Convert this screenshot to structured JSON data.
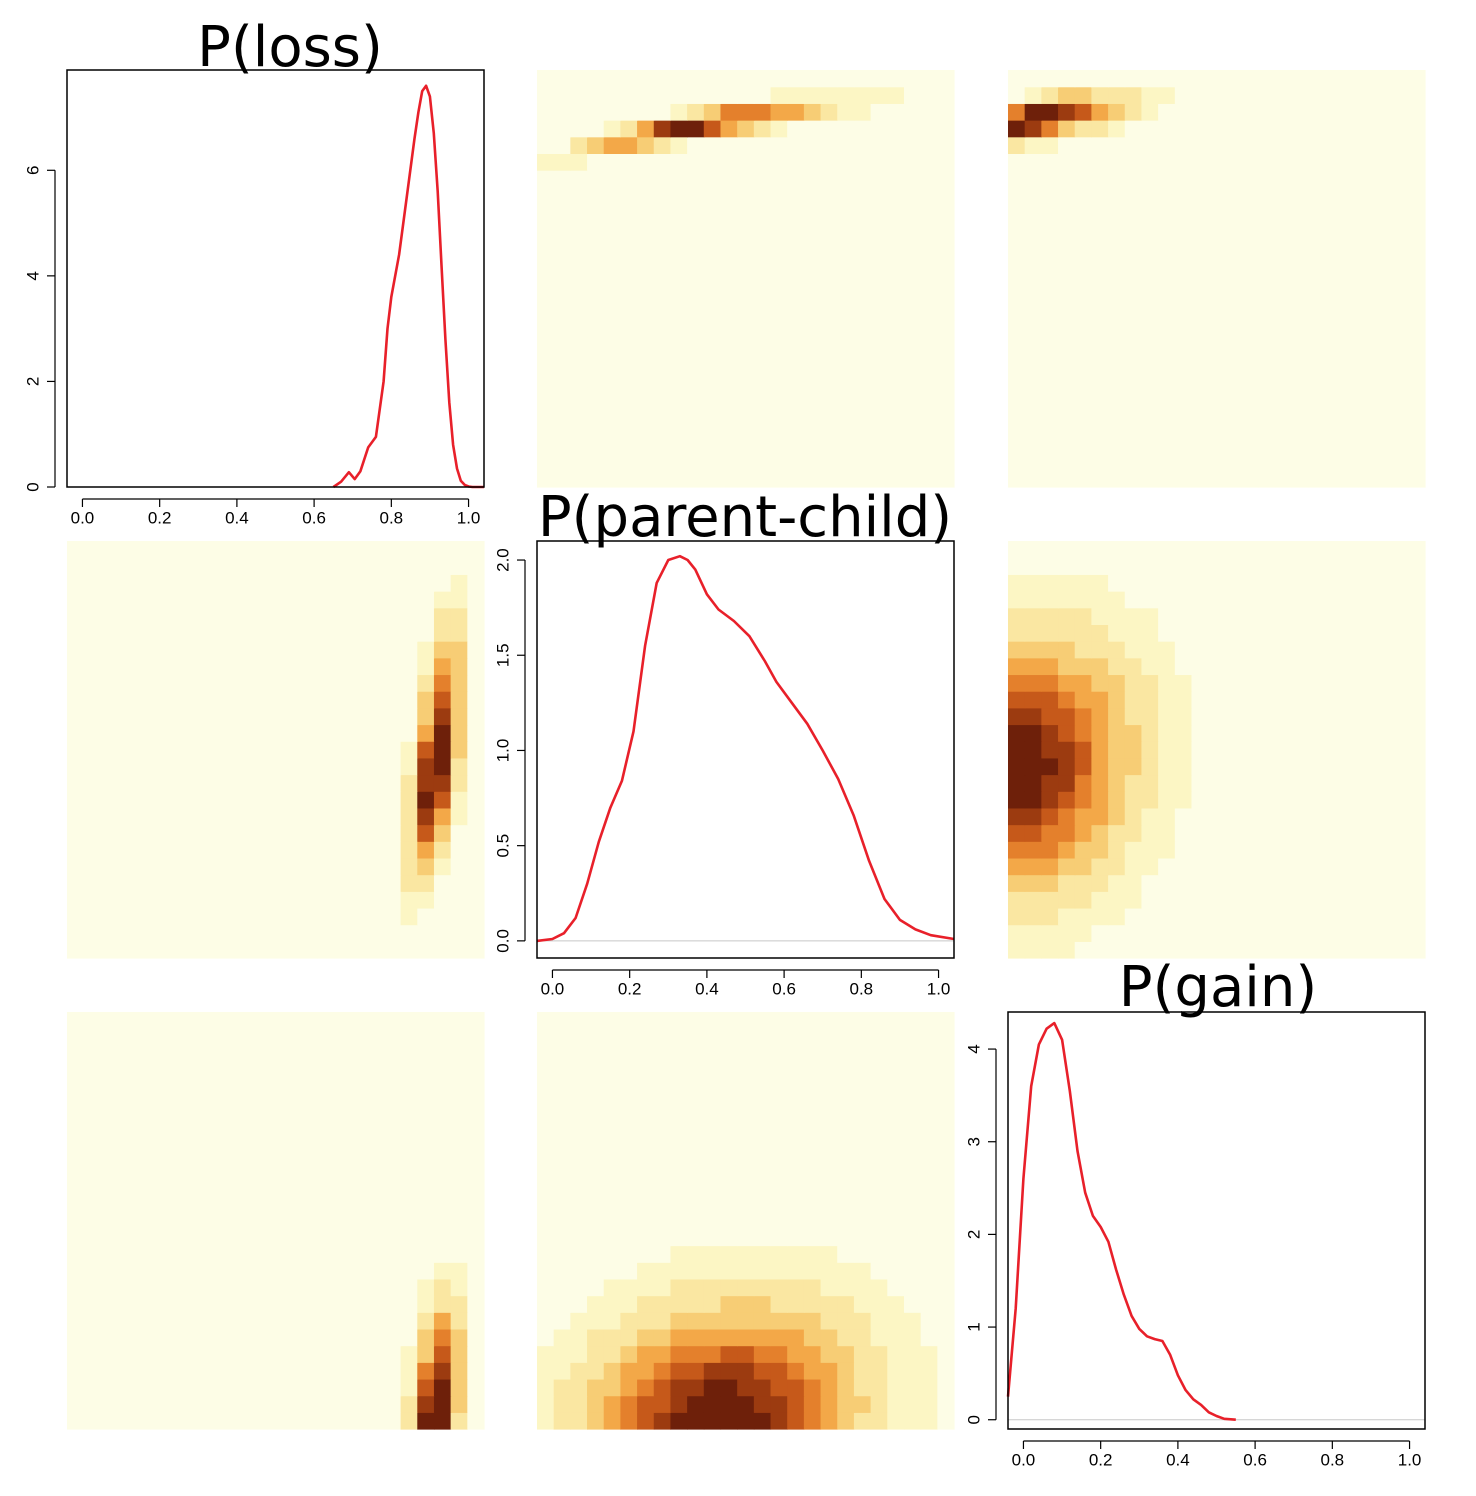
{
  "colors": {
    "curve": "#e8202a",
    "heat_scale": [
      "#fdfde6",
      "#fcf6c4",
      "#fae7a2",
      "#f7cd75",
      "#f3a848",
      "#e4802c",
      "#c6591a",
      "#9c3b10",
      "#6e200a"
    ]
  },
  "chart_data": [
    {
      "type": "line",
      "panel": "diagonal-1",
      "title": "P(loss)",
      "xlim": [
        -0.04,
        1.04
      ],
      "ylim": [
        0,
        7.9
      ],
      "xticks": [
        0.0,
        0.2,
        0.4,
        0.6,
        0.8,
        1.0
      ],
      "xtick_labels": [
        "0.0",
        "0.2",
        "0.4",
        "0.6",
        "0.8",
        "1.0"
      ],
      "yticks": [
        0,
        2,
        4,
        6
      ],
      "ytick_labels": [
        "0",
        "2",
        "4",
        "6"
      ],
      "series": [
        {
          "x": [
            0.65,
            0.67,
            0.69,
            0.705,
            0.72,
            0.74,
            0.76,
            0.78,
            0.79,
            0.8,
            0.82,
            0.84,
            0.86,
            0.87,
            0.88,
            0.89,
            0.9,
            0.91,
            0.92,
            0.93,
            0.94,
            0.95,
            0.96,
            0.97,
            0.98,
            0.99,
            1.0,
            1.01,
            1.02,
            1.04
          ],
          "y": [
            0.0,
            0.1,
            0.28,
            0.15,
            0.3,
            0.75,
            0.95,
            2.0,
            3.0,
            3.6,
            4.4,
            5.5,
            6.6,
            7.1,
            7.5,
            7.6,
            7.4,
            6.7,
            5.6,
            4.2,
            2.8,
            1.6,
            0.8,
            0.35,
            0.12,
            0.04,
            0.01,
            0.0,
            0.0,
            0.0
          ]
        }
      ]
    },
    {
      "type": "line",
      "panel": "diagonal-2",
      "title": "P(parent-child)",
      "xlim": [
        -0.04,
        1.04
      ],
      "ylim": [
        -0.09,
        2.1
      ],
      "xticks": [
        0.0,
        0.2,
        0.4,
        0.6,
        0.8,
        1.0
      ],
      "xtick_labels": [
        "0.0",
        "0.2",
        "0.4",
        "0.6",
        "0.8",
        "1.0"
      ],
      "yticks": [
        0.0,
        0.5,
        1.0,
        1.5,
        2.0
      ],
      "ytick_labels": [
        "0.0",
        "0.5",
        "1.0",
        "1.5",
        "2.0"
      ],
      "series": [
        {
          "x": [
            -0.04,
            0.0,
            0.03,
            0.06,
            0.09,
            0.12,
            0.15,
            0.18,
            0.21,
            0.24,
            0.27,
            0.3,
            0.33,
            0.35,
            0.37,
            0.4,
            0.43,
            0.47,
            0.51,
            0.55,
            0.58,
            0.62,
            0.66,
            0.7,
            0.74,
            0.78,
            0.82,
            0.86,
            0.9,
            0.94,
            0.98,
            1.04
          ],
          "y": [
            0.0,
            0.01,
            0.04,
            0.12,
            0.3,
            0.52,
            0.7,
            0.84,
            1.1,
            1.55,
            1.88,
            2.0,
            2.02,
            2.0,
            1.95,
            1.82,
            1.74,
            1.68,
            1.6,
            1.47,
            1.36,
            1.25,
            1.14,
            1.0,
            0.85,
            0.66,
            0.42,
            0.22,
            0.11,
            0.06,
            0.03,
            0.01
          ]
        }
      ]
    },
    {
      "type": "line",
      "panel": "diagonal-3",
      "title": "P(gain)",
      "xlim": [
        -0.04,
        1.04
      ],
      "ylim": [
        -0.1,
        4.4
      ],
      "xticks": [
        0.0,
        0.2,
        0.4,
        0.6,
        0.8,
        1.0
      ],
      "xtick_labels": [
        "0.0",
        "0.2",
        "0.4",
        "0.6",
        "0.8",
        "1.0"
      ],
      "yticks": [
        0,
        1,
        2,
        3,
        4
      ],
      "ytick_labels": [
        "0",
        "1",
        "2",
        "3",
        "4"
      ],
      "series": [
        {
          "x": [
            -0.04,
            -0.02,
            0.0,
            0.02,
            0.04,
            0.06,
            0.08,
            0.1,
            0.12,
            0.14,
            0.16,
            0.18,
            0.2,
            0.22,
            0.24,
            0.26,
            0.28,
            0.3,
            0.32,
            0.34,
            0.36,
            0.38,
            0.4,
            0.42,
            0.44,
            0.46,
            0.48,
            0.5,
            0.52,
            0.55
          ],
          "y": [
            0.25,
            1.2,
            2.6,
            3.6,
            4.05,
            4.22,
            4.28,
            4.1,
            3.55,
            2.9,
            2.45,
            2.2,
            2.08,
            1.92,
            1.62,
            1.35,
            1.12,
            0.98,
            0.9,
            0.87,
            0.85,
            0.7,
            0.48,
            0.32,
            0.22,
            0.16,
            0.08,
            0.04,
            0.01,
            0.0
          ]
        }
      ]
    },
    {
      "type": "heatmap",
      "panel": "row1-col2",
      "x_var": "P(parent-child)",
      "y_var": "P(loss)",
      "xlim": [
        0,
        1
      ],
      "ylim": [
        0,
        1
      ],
      "components": [
        {
          "cx": 0.34,
          "cy": 0.86,
          "sx": 0.12,
          "sy": 0.032,
          "rho": 0.88,
          "w": 1.0
        },
        {
          "cx": 0.5,
          "cy": 0.88,
          "sx": 0.16,
          "sy": 0.03,
          "rho": 0.85,
          "w": 0.55
        }
      ]
    },
    {
      "type": "heatmap",
      "panel": "row1-col3",
      "x_var": "P(gain)",
      "y_var": "P(loss)",
      "xlim": [
        0,
        1
      ],
      "ylim": [
        0,
        1
      ],
      "components": [
        {
          "cx": 0.05,
          "cy": 0.88,
          "sx": 0.08,
          "sy": 0.032,
          "rho": 0.7,
          "w": 1.0
        },
        {
          "cx": 0.17,
          "cy": 0.89,
          "sx": 0.09,
          "sy": 0.03,
          "rho": 0.6,
          "w": 0.35
        }
      ]
    },
    {
      "type": "heatmap",
      "panel": "row2-col1",
      "x_var": "P(loss)",
      "y_var": "P(parent-child)",
      "xlim": [
        0,
        1
      ],
      "ylim": [
        0,
        1
      ],
      "components": [
        {
          "cx": 0.88,
          "cy": 0.42,
          "sx": 0.032,
          "sy": 0.12,
          "rho": 0.55,
          "w": 1.0
        },
        {
          "cx": 0.9,
          "cy": 0.62,
          "sx": 0.03,
          "sy": 0.12,
          "rho": 0.45,
          "w": 0.45
        }
      ]
    },
    {
      "type": "heatmap",
      "panel": "row2-col3",
      "x_var": "P(gain)",
      "y_var": "P(parent-child)",
      "xlim": [
        0,
        1
      ],
      "ylim": [
        0,
        1
      ],
      "components": [
        {
          "cx": 0.0,
          "cy": 0.43,
          "sx": 0.14,
          "sy": 0.16,
          "rho": 0.0,
          "w": 1.0
        },
        {
          "cx": 0.12,
          "cy": 0.55,
          "sx": 0.14,
          "sy": 0.16,
          "rho": 0.0,
          "w": 0.3
        }
      ]
    },
    {
      "type": "heatmap",
      "panel": "row3-col1",
      "x_var": "P(loss)",
      "y_var": "P(gain)",
      "xlim": [
        0,
        1
      ],
      "ylim": [
        0,
        1
      ],
      "components": [
        {
          "cx": 0.88,
          "cy": 0.0,
          "sx": 0.03,
          "sy": 0.1,
          "rho": 0.2,
          "w": 1.0
        },
        {
          "cx": 0.9,
          "cy": 0.18,
          "sx": 0.03,
          "sy": 0.09,
          "rho": 0.2,
          "w": 0.35
        }
      ]
    },
    {
      "type": "heatmap",
      "panel": "row3-col2",
      "x_var": "P(parent-child)",
      "y_var": "P(gain)",
      "xlim": [
        0,
        1
      ],
      "ylim": [
        0,
        1
      ],
      "components": [
        {
          "cx": 0.42,
          "cy": 0.0,
          "sx": 0.17,
          "sy": 0.14,
          "rho": 0.0,
          "w": 1.0
        },
        {
          "cx": 0.55,
          "cy": 0.12,
          "sx": 0.17,
          "sy": 0.14,
          "rho": 0.0,
          "w": 0.3
        }
      ]
    }
  ]
}
